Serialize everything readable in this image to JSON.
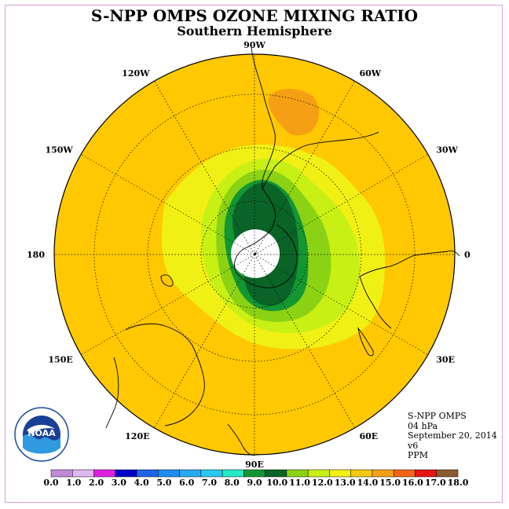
{
  "title": "S-NPP OMPS OZONE MIXING RATIO",
  "subtitle": "Southern Hemisphere",
  "longitude_labels": [
    "90W",
    "60W",
    "30W",
    "0",
    "30E",
    "60E",
    "90E",
    "120E",
    "150E",
    "180",
    "150W",
    "120W"
  ],
  "info": {
    "instrument": "S-NPP OMPS",
    "pressure": "04 hPa",
    "date": "September 20, 2014",
    "version": "v6",
    "units": "PPM"
  },
  "colorbar": {
    "tick_labels": [
      "0.0",
      "1.0",
      "2.0",
      "3.0",
      "4.0",
      "5.0",
      "6.0",
      "7.0",
      "8.0",
      "9.0",
      "10.0",
      "11.0",
      "12.0",
      "13.0",
      "14.0",
      "15.0",
      "16.0",
      "17.0",
      "18.0"
    ],
    "colors": [
      "#c08ad8",
      "#dcb8ec",
      "#e020e0",
      "#0000c8",
      "#1e64e6",
      "#1e8cf0",
      "#28aaf0",
      "#28c8f0",
      "#28e8c8",
      "#149632",
      "#0a6428",
      "#8cd214",
      "#c8f014",
      "#f0f014",
      "#f5c814",
      "#f5a014",
      "#f56414",
      "#e61414",
      "#8c5a32"
    ]
  },
  "map_colors": {
    "background": "#ffc800",
    "high": "#f5a014",
    "level_12_13": "#f0f014",
    "level_11_12": "#c8f014",
    "level_10_11": "#8cd214",
    "level_9_10": "#149632",
    "level_8_9": "#0a6428"
  },
  "logo_text": "NOAA"
}
